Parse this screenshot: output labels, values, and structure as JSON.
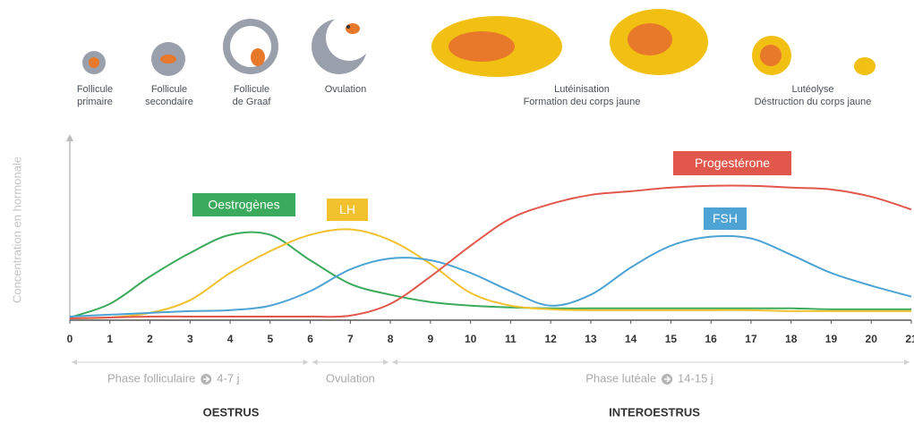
{
  "stages": [
    {
      "lines": [
        "Follicule",
        "primaire"
      ]
    },
    {
      "lines": [
        "Follicule",
        "secondaire"
      ]
    },
    {
      "lines": [
        "Follicule",
        "de Graaf"
      ]
    },
    {
      "lines": [
        "Ovulation"
      ]
    },
    {
      "lines": [
        "Lutéinisation",
        "Formation deu corps jaune"
      ]
    },
    {
      "lines": [
        "Lutéolyse",
        "Déstruction du corps jaune"
      ]
    }
  ],
  "chart_data": {
    "type": "line",
    "ylabel": "Concentration en hormonale",
    "x": [
      0,
      1,
      2,
      3,
      4,
      5,
      6,
      7,
      8,
      9,
      10,
      11,
      12,
      13,
      14,
      15,
      16,
      17,
      18,
      19,
      20,
      21
    ],
    "xlim": [
      0,
      21
    ],
    "xticks": [
      0,
      1,
      2,
      3,
      4,
      5,
      6,
      7,
      8,
      9,
      10,
      11,
      12,
      13,
      14,
      15,
      16,
      17,
      18,
      19,
      20,
      21
    ],
    "ylim": [
      0,
      100
    ],
    "series": [
      {
        "name": "Oestrogènes",
        "color": "#3aaa5c",
        "values": [
          1.5,
          9,
          24,
          37,
          47,
          47,
          33,
          20,
          14,
          10,
          8,
          7,
          6.5,
          6.5,
          6.5,
          6.5,
          6.5,
          6.5,
          6.5,
          6,
          6,
          6
        ]
      },
      {
        "name": "LH",
        "color": "#f2c12e",
        "values": [
          1,
          1.5,
          4,
          11,
          26,
          38,
          47,
          50,
          44,
          31,
          15,
          8,
          6,
          5.5,
          5.5,
          5.5,
          5.5,
          5.5,
          5,
          5,
          5,
          5
        ]
      },
      {
        "name": "FSH",
        "color": "#4da3d4",
        "values": [
          2,
          3,
          4,
          5,
          5.5,
          8,
          16,
          28,
          34,
          33,
          26,
          16,
          8,
          14,
          29,
          41,
          46,
          45,
          36,
          26,
          19,
          13
        ]
      },
      {
        "name": "Progestérone",
        "color": "#e2574c",
        "values": [
          1,
          1.5,
          2,
          2,
          2,
          2,
          2,
          2.5,
          9,
          24,
          41,
          56,
          64,
          69,
          71,
          73,
          74,
          74,
          73,
          72,
          68,
          61
        ]
      }
    ],
    "phases": [
      {
        "label": "Phase folliculaire",
        "duration": "4-7 j",
        "start": 0,
        "end": 6
      },
      {
        "label": "Ovulation",
        "start": 6,
        "end": 8
      },
      {
        "label": "Phase lutéale",
        "duration": "14-15 j",
        "start": 8,
        "end": 21
      }
    ],
    "periods": [
      "OESTRUS",
      "INTEROESTRUS"
    ]
  }
}
